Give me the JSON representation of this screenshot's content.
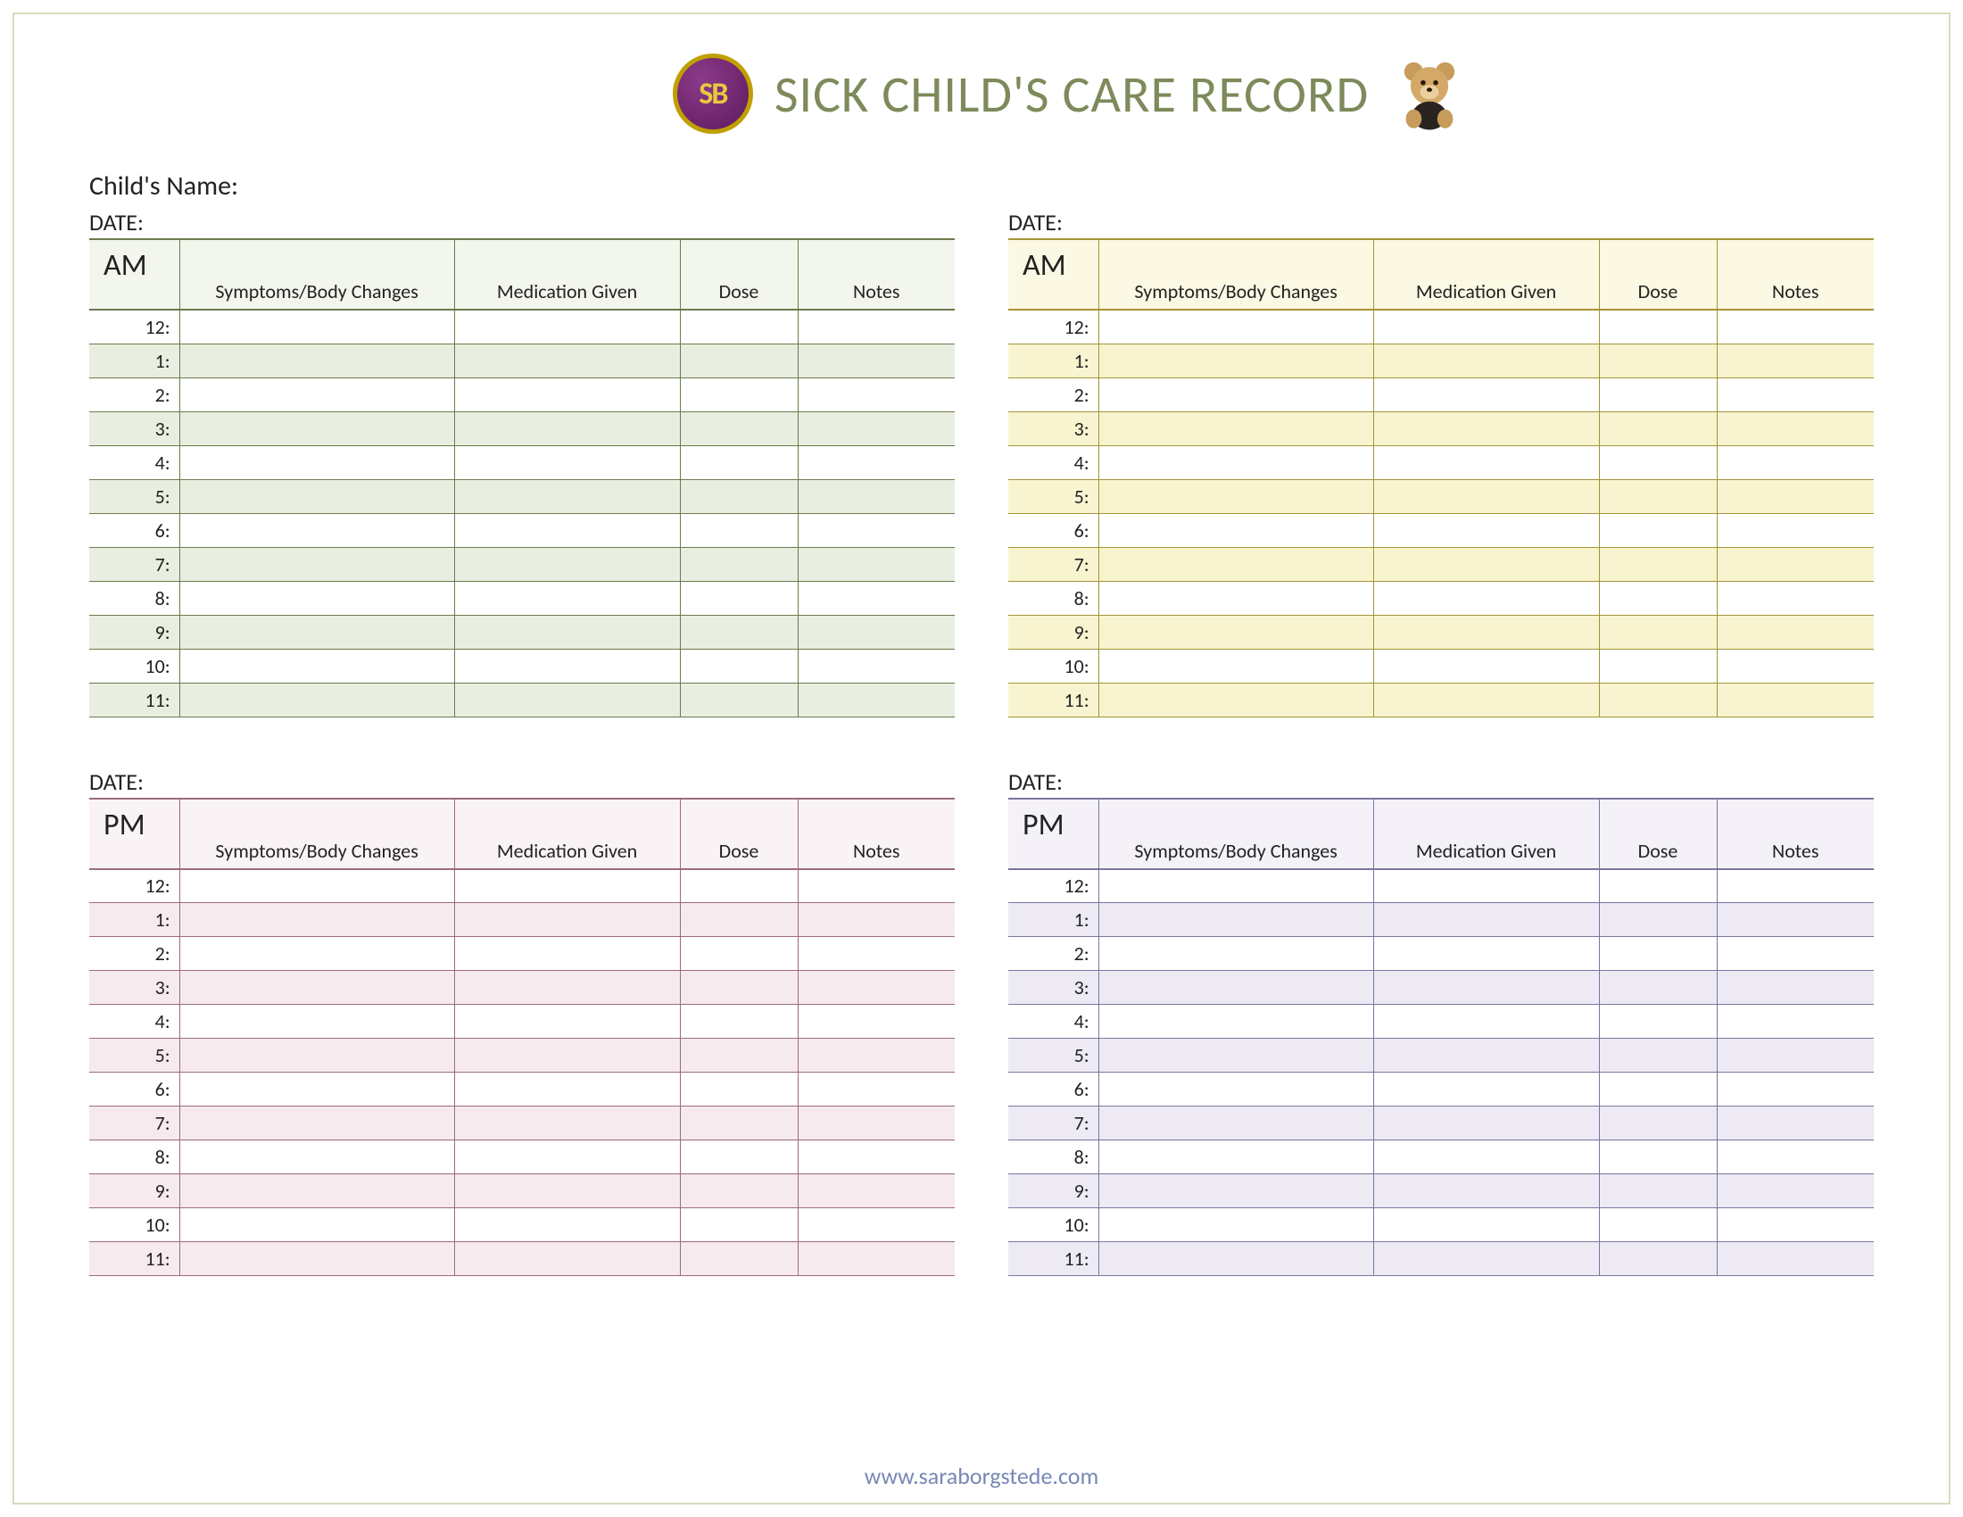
{
  "title": "SICK CHILD'S CARE RECORD",
  "logo_text": "SB",
  "child_name_label": "Child's Name:",
  "date_label": "DATE:",
  "footer_url": "www.saraborgstede.com",
  "columns": {
    "symptoms": "Symptoms/Body Changes",
    "medication": "Medication Given",
    "dose": "Dose",
    "notes": "Notes"
  },
  "hours": [
    "12:",
    "1:",
    "2:",
    "3:",
    "4:",
    "5:",
    "6:",
    "7:",
    "8:",
    "9:",
    "10:",
    "11:"
  ],
  "sections": [
    {
      "period": "AM",
      "border": "#6b7a4c",
      "tint": "#e8efe0",
      "header_tint": "#f2f6ec"
    },
    {
      "period": "AM",
      "border": "#a29538",
      "tint": "#f8f4d0",
      "header_tint": "#fbf8e3"
    },
    {
      "period": "PM",
      "border": "#9c6b7a",
      "tint": "#f6eaee",
      "header_tint": "#faf3f5"
    },
    {
      "period": "PM",
      "border": "#7d749e",
      "tint": "#edeaf4",
      "header_tint": "#f4f2f8"
    }
  ],
  "colors": {
    "page_border": "#d9dac0",
    "title_color": "#7d8a5a",
    "footer_color": "#7688b5",
    "text_color": "#222222"
  }
}
